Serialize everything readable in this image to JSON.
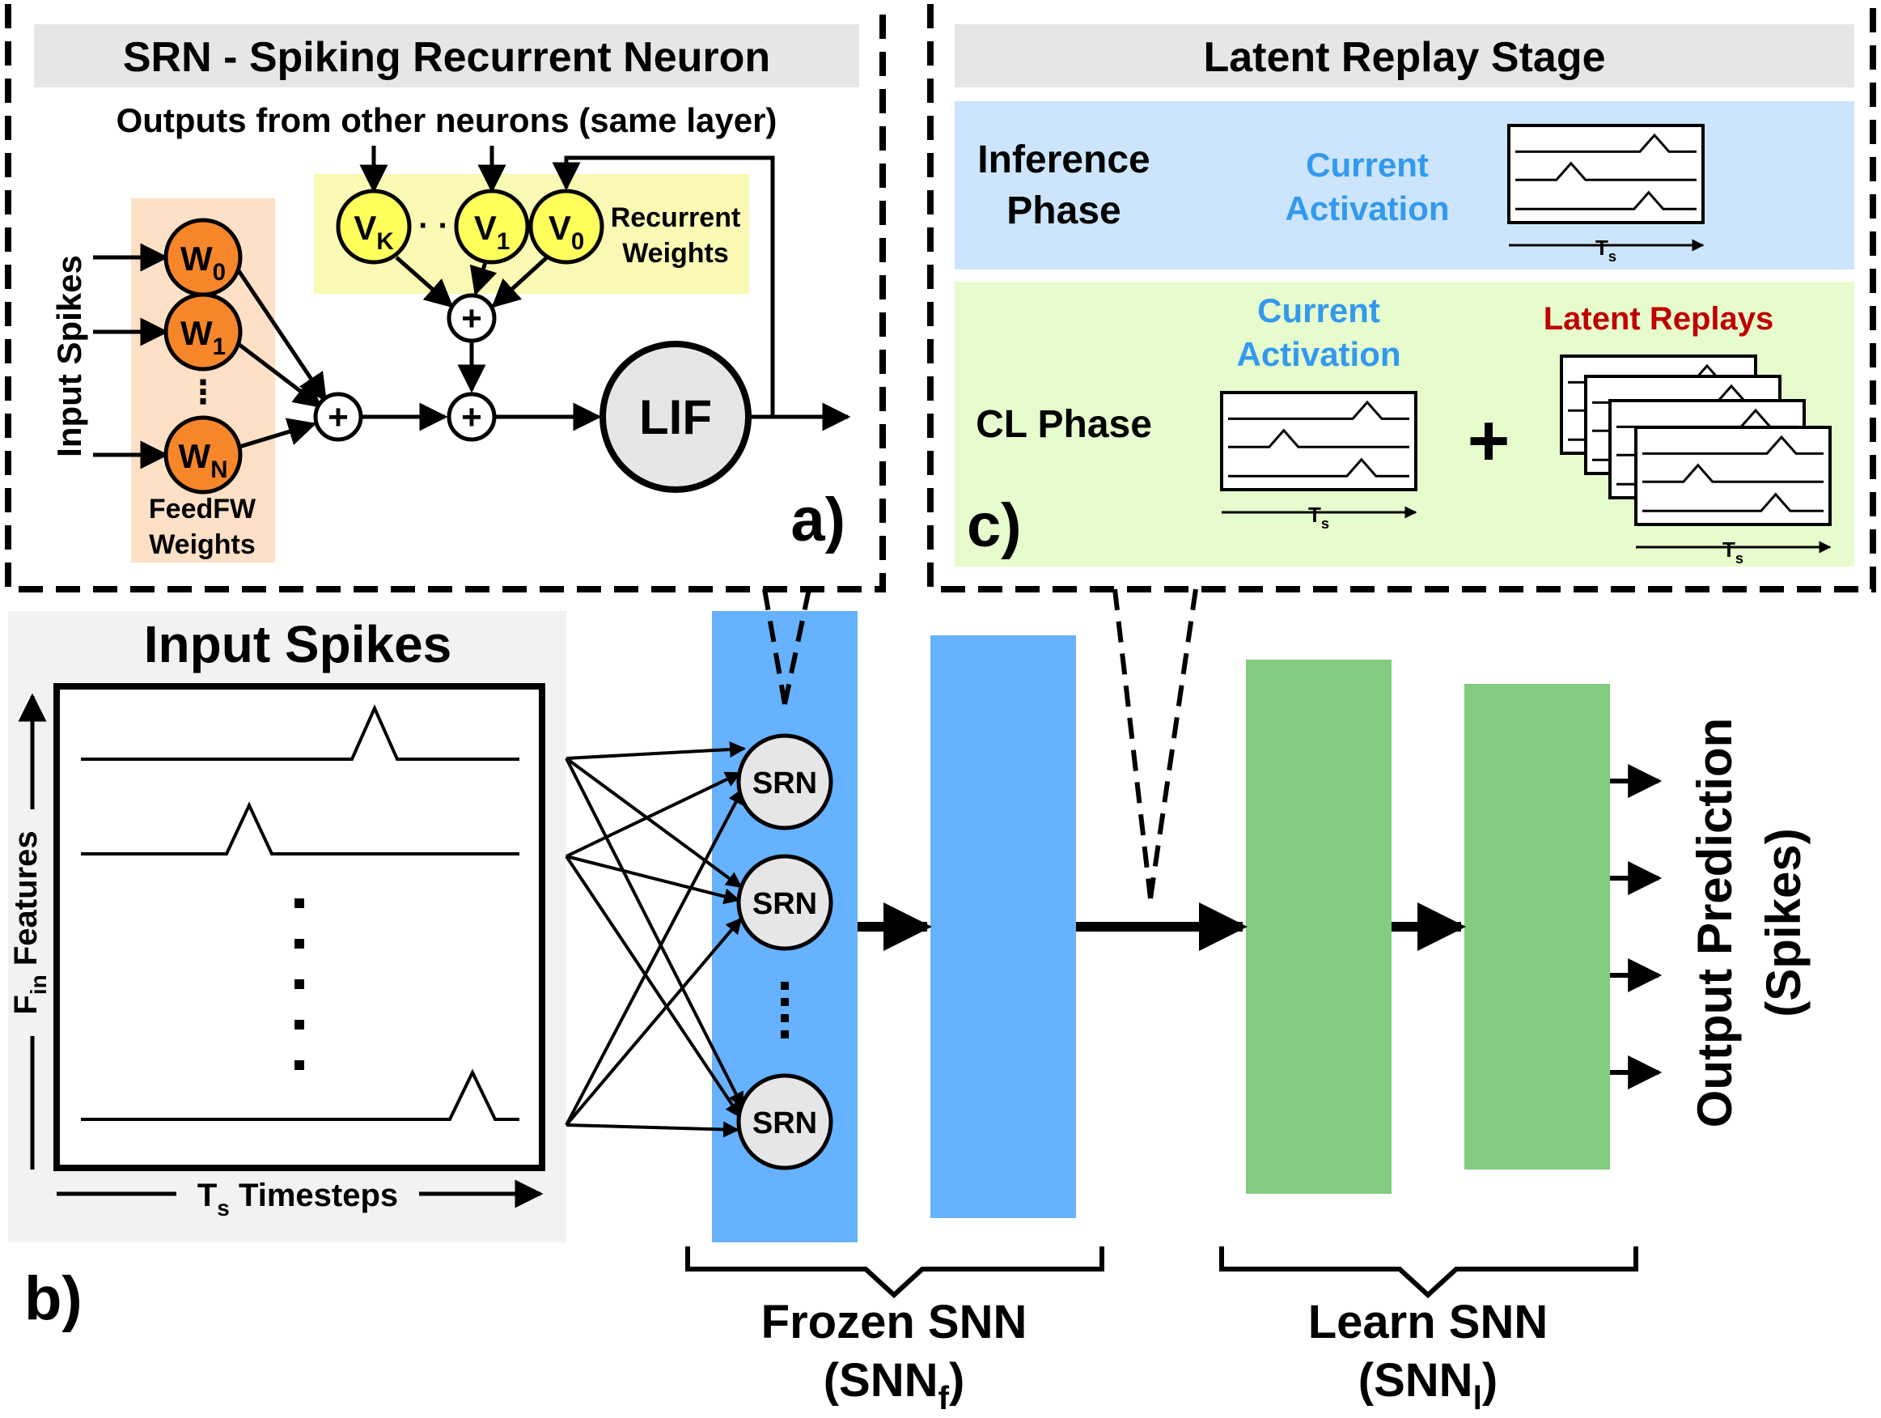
{
  "panel_a": {
    "header": "SRN - Spiking Recurrent Neuron",
    "outputs_label": "Outputs from other neurons (same layer)",
    "input_spikes_label": "Input Spikes",
    "ff_weights": [
      {
        "base": "W",
        "sub": "0"
      },
      {
        "base": "W",
        "sub": "1"
      },
      {
        "base": "W",
        "sub": "N"
      }
    ],
    "rec_weights": [
      {
        "base": "V",
        "sub": "K"
      },
      {
        "base": "V",
        "sub": "1"
      },
      {
        "base": "V",
        "sub": "0"
      }
    ],
    "rec_dots": "· ·",
    "ff_dots": "⋮",
    "recurrent_label_1": "Recurrent",
    "recurrent_label_2": "Weights",
    "feedfw_label_1": "FeedFW",
    "feedfw_label_2": "Weights",
    "sum_symbol": "+",
    "lif_label": "LIF",
    "panel_tag": "a)"
  },
  "panel_b": {
    "title": "Input Spikes",
    "y_axis_main": "F",
    "y_axis_sub": "in",
    "y_axis_rest": " Features",
    "x_axis_main": "T",
    "x_axis_sub": "s",
    "x_axis_rest": " Timesteps",
    "panel_tag": "b)",
    "neuron_label": "SRN",
    "frozen_label": "Frozen SNN",
    "frozen_sub_main": "(SNN",
    "frozen_sub_sub": "f",
    "learn_label": "Learn SNN",
    "learn_sub_main": "(SNN",
    "learn_sub_sub": "l",
    "close_paren": ")",
    "output_label_1": "Output Prediction",
    "output_label_2": "(Spikes)"
  },
  "panel_c": {
    "header": "Latent Replay Stage",
    "inference_phase_1": "Inference",
    "inference_phase_2": "Phase",
    "current_activation_1": "Current",
    "current_activation_2": "Activation",
    "cl_phase": "CL Phase",
    "latent_replays": "Latent Replays",
    "plus": "+",
    "ts_main": "T",
    "ts_sub": "s",
    "panel_tag": "c)"
  },
  "colors": {
    "frozen_blue": "#66b2ff",
    "learn_green": "#82cb7f",
    "weight_orange": "#f5862a",
    "orange_bg": "#fde0c6",
    "rec_yellow": "#ffff5c",
    "yellow_bg": "#fafab4",
    "inference_bg": "#cce5fc",
    "cl_bg": "#e6fccd",
    "header_gray": "#e6e6e6",
    "activation_blue": "#3399ee",
    "replay_red": "#c00000"
  }
}
